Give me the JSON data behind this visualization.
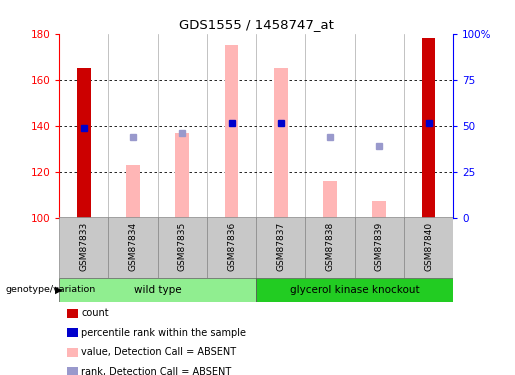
{
  "title": "GDS1555 / 1458747_at",
  "samples": [
    "GSM87833",
    "GSM87834",
    "GSM87835",
    "GSM87836",
    "GSM87837",
    "GSM87838",
    "GSM87839",
    "GSM87840"
  ],
  "ylim_left": [
    100,
    180
  ],
  "ylim_right": [
    0,
    100
  ],
  "yticks_left": [
    100,
    120,
    140,
    160,
    180
  ],
  "ytick_labels_left": [
    "100",
    "120",
    "140",
    "160",
    "180"
  ],
  "yticks_right": [
    0,
    25,
    50,
    75,
    100
  ],
  "ytick_labels_right": [
    "0",
    "25",
    "50",
    "75",
    "100%"
  ],
  "bar_values": [
    165,
    null,
    null,
    null,
    null,
    null,
    null,
    178
  ],
  "bar_color": "#CC0000",
  "pink_bar_values": [
    null,
    123,
    137,
    175,
    165,
    116,
    107,
    null
  ],
  "pink_bar_color": "#FFB6B6",
  "blue_square_values": [
    139,
    null,
    null,
    141,
    141,
    null,
    null,
    141
  ],
  "blue_square_color": "#0000CC",
  "light_blue_square_values": [
    null,
    135,
    137,
    null,
    null,
    135,
    131,
    null
  ],
  "light_blue_square_color": "#9999CC",
  "bg_color": "#FFFFFF",
  "wt_color": "#90EE90",
  "gk_color": "#22CC22",
  "label_bg_color": "#C8C8C8",
  "legend_items": [
    {
      "color": "#CC0000",
      "label": "count"
    },
    {
      "color": "#0000CC",
      "label": "percentile rank within the sample"
    },
    {
      "color": "#FFB6B6",
      "label": "value, Detection Call = ABSENT"
    },
    {
      "color": "#9999CC",
      "label": "rank, Detection Call = ABSENT"
    }
  ]
}
